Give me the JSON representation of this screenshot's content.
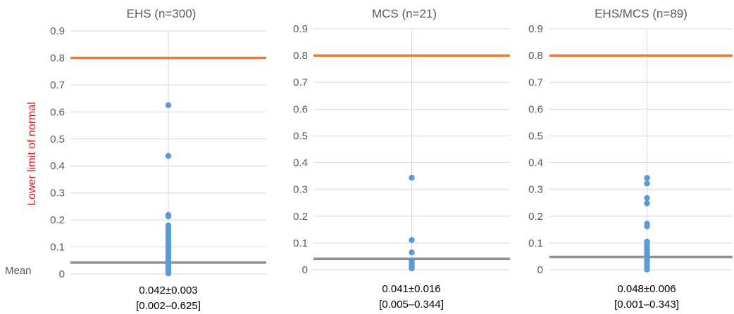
{
  "figure": {
    "lower_limit_label": "Lower limit of normal",
    "mean_label": "Mean"
  },
  "colors": {
    "threshold_line": "#ED7D31",
    "mean_line": "#909090",
    "points": "#5B9BD5",
    "grid": "#D9D9D9",
    "axis_text": "#595959",
    "lower_limit_label": "#E41A1C"
  },
  "chart_data": [
    {
      "type": "scatter",
      "title": "EHS (n=300)",
      "ylim": [
        0,
        0.9
      ],
      "yticks": [
        "0",
        "0.1",
        "0.2",
        "0.3",
        "0.4",
        "0.5",
        "0.6",
        "0.7",
        "0.8",
        "0.9"
      ],
      "grid": true,
      "lower_limit_of_normal": 0.8,
      "mean": 0.042,
      "summary_line1": "0.042±0.003",
      "summary_line2": "[0.002–0.625]",
      "points": [
        0.625,
        0.437,
        0.219,
        0.213,
        0.18,
        0.175,
        0.165,
        0.155,
        0.148,
        0.14,
        0.133,
        0.127,
        0.12,
        0.114,
        0.108,
        0.102,
        0.096,
        0.09,
        0.084,
        0.078,
        0.072,
        0.066,
        0.06,
        0.055,
        0.05,
        0.045,
        0.04,
        0.035,
        0.03,
        0.025,
        0.02,
        0.015,
        0.01,
        0.006,
        0.002
      ]
    },
    {
      "type": "scatter",
      "title": "MCS (n=21)",
      "ylim": [
        0,
        0.9
      ],
      "yticks": [
        "0",
        "0.1",
        "0.2",
        "0.3",
        "0.4",
        "0.5",
        "0.6",
        "0.7",
        "0.8",
        "0.9"
      ],
      "grid": true,
      "lower_limit_of_normal": 0.8,
      "mean": 0.041,
      "summary_line1": "0.041±0.016",
      "summary_line2": "[0.005–0.344]",
      "points": [
        0.344,
        0.111,
        0.065,
        0.035,
        0.027,
        0.02,
        0.015,
        0.01,
        0.005
      ]
    },
    {
      "type": "scatter",
      "title": "EHS/MCS (n=89)",
      "ylim": [
        0,
        0.9
      ],
      "yticks": [
        "0",
        "0.1",
        "0.2",
        "0.3",
        "0.4",
        "0.5",
        "0.6",
        "0.7",
        "0.8",
        "0.9"
      ],
      "grid": true,
      "lower_limit_of_normal": 0.8,
      "mean": 0.048,
      "summary_line1": "0.048±0.006",
      "summary_line2": "[0.001–0.343]",
      "points": [
        0.343,
        0.322,
        0.268,
        0.248,
        0.172,
        0.162,
        0.105,
        0.095,
        0.088,
        0.08,
        0.072,
        0.064,
        0.056,
        0.048,
        0.04,
        0.032,
        0.024,
        0.016,
        0.008,
        0.001
      ]
    }
  ]
}
